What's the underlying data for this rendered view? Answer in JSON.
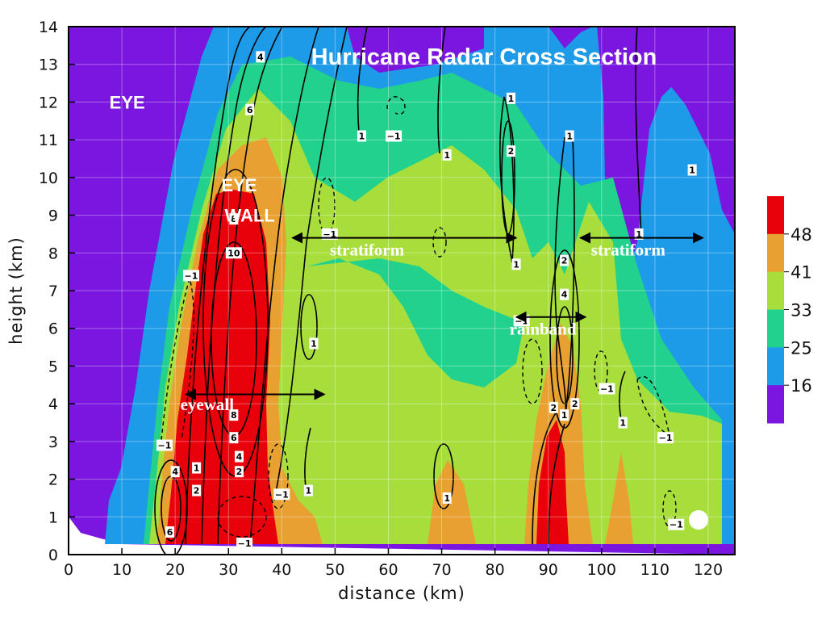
{
  "chart_data": {
    "type": "heatmap",
    "title": "Hurricane Radar Cross Section",
    "xlabel": "distance (km)",
    "ylabel": "height (km)",
    "xlim": [
      0,
      125
    ],
    "ylim": [
      0,
      14
    ],
    "x_ticks": [
      0,
      10,
      20,
      30,
      40,
      50,
      60,
      70,
      80,
      90,
      100,
      110,
      120
    ],
    "y_ticks": [
      0,
      1,
      2,
      3,
      4,
      5,
      6,
      7,
      8,
      9,
      10,
      11,
      12,
      13,
      14
    ],
    "grid": true,
    "colorbar": {
      "placement": "right",
      "levels": [
        16,
        25,
        33,
        41,
        48
      ],
      "labels": [
        "48",
        "41",
        "33",
        "25",
        "16"
      ],
      "colors": [
        "#e8000b",
        "#e8a030",
        "#a8de3c",
        "#22d28c",
        "#1e9be8",
        "#7a16e0"
      ]
    },
    "annotations": [
      {
        "text": "EYE",
        "x": 11,
        "y": 12.0
      },
      {
        "text": "EYE",
        "x": 32,
        "y": 9.8
      },
      {
        "text": "WALL",
        "x": 34,
        "y": 9.0
      },
      {
        "text": "stratiform",
        "x": 56,
        "y": 8.1
      },
      {
        "text": "stratiform",
        "x": 105,
        "y": 8.1
      },
      {
        "text": "rainband",
        "x": 89,
        "y": 6.0
      },
      {
        "text": "eyewall",
        "x": 26,
        "y": 4.0
      }
    ],
    "arrows": [
      {
        "from": [
          42,
          8.4
        ],
        "to": [
          84,
          8.4
        ]
      },
      {
        "from": [
          96,
          8.4
        ],
        "to": [
          119,
          8.4
        ]
      },
      {
        "from": [
          84,
          6.3
        ],
        "to": [
          97,
          6.3
        ]
      },
      {
        "from": [
          22,
          4.25
        ],
        "to": [
          48,
          4.25
        ]
      }
    ],
    "contour_labels": [
      {
        "text": "4",
        "x": 36,
        "y": 13.2
      },
      {
        "text": "6",
        "x": 34,
        "y": 11.8
      },
      {
        "text": "1",
        "x": 55,
        "y": 11.1
      },
      {
        "text": "−1",
        "x": 61,
        "y": 11.1
      },
      {
        "text": "1",
        "x": 71,
        "y": 10.6
      },
      {
        "text": "1",
        "x": 83,
        "y": 12.1
      },
      {
        "text": "2",
        "x": 83,
        "y": 10.7
      },
      {
        "text": "1",
        "x": 94,
        "y": 11.1
      },
      {
        "text": "1",
        "x": 117,
        "y": 10.2
      },
      {
        "text": "8",
        "x": 31,
        "y": 8.9
      },
      {
        "text": "10",
        "x": 31,
        "y": 8.0
      },
      {
        "text": "−1",
        "x": 49,
        "y": 8.5
      },
      {
        "text": "1",
        "x": 84,
        "y": 7.7
      },
      {
        "text": "1",
        "x": 107,
        "y": 8.5
      },
      {
        "text": "2",
        "x": 93,
        "y": 7.8
      },
      {
        "text": "−1",
        "x": 23,
        "y": 7.4
      },
      {
        "text": "4",
        "x": 93,
        "y": 6.9
      },
      {
        "text": "−1",
        "x": 85,
        "y": 6.2
      },
      {
        "text": "1",
        "x": 46,
        "y": 5.6
      },
      {
        "text": "−1",
        "x": 101,
        "y": 4.4
      },
      {
        "text": "2",
        "x": 91,
        "y": 3.9
      },
      {
        "text": "1",
        "x": 93,
        "y": 3.7
      },
      {
        "text": "2",
        "x": 95,
        "y": 4.0
      },
      {
        "text": "8",
        "x": 31,
        "y": 3.7
      },
      {
        "text": "1",
        "x": 104,
        "y": 3.5
      },
      {
        "text": "6",
        "x": 31,
        "y": 3.1
      },
      {
        "text": "−1",
        "x": 112,
        "y": 3.1
      },
      {
        "text": "−1",
        "x": 18,
        "y": 2.9
      },
      {
        "text": "4",
        "x": 32,
        "y": 2.6
      },
      {
        "text": "4",
        "x": 20,
        "y": 2.2
      },
      {
        "text": "1",
        "x": 24,
        "y": 2.3
      },
      {
        "text": "2",
        "x": 32,
        "y": 2.2
      },
      {
        "text": "2",
        "x": 24,
        "y": 1.7
      },
      {
        "text": "−1",
        "x": 40,
        "y": 1.6
      },
      {
        "text": "1",
        "x": 45,
        "y": 1.7
      },
      {
        "text": "1",
        "x": 71,
        "y": 1.5
      },
      {
        "text": "−1",
        "x": 114,
        "y": 0.8
      },
      {
        "text": "6",
        "x": 19,
        "y": 0.6
      },
      {
        "text": "−1",
        "x": 33,
        "y": 0.3
      }
    ]
  }
}
